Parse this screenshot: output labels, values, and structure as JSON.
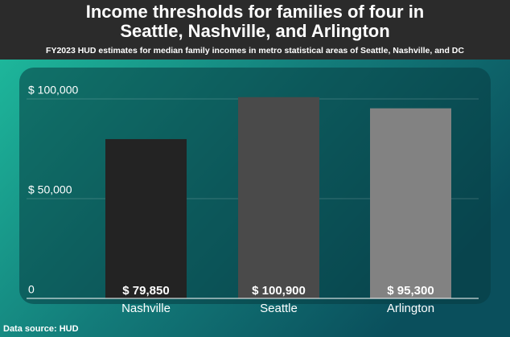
{
  "chart_data": {
    "type": "bar",
    "title": [
      "Income thresholds for families of four in",
      "Seattle, Nashville, and Arlington"
    ],
    "subtitle": "FY2023 HUD estimates for median family incomes in metro statistical areas of Seattle, Nashville, and DC",
    "categories": [
      "Nashville",
      "Seattle",
      "Arlington"
    ],
    "values": [
      79850,
      100900,
      95300
    ],
    "value_labels": [
      "$ 79,850",
      "$ 100,900",
      "$ 95,300"
    ],
    "colors": [
      "#232323",
      "#4a4a4a",
      "#828282"
    ],
    "ylim": [
      0,
      105000
    ],
    "yticks": [
      0,
      {
        "value": 50000,
        "label": "$ 50,000"
      },
      {
        "value": 100000,
        "label": "$ 100,000"
      }
    ],
    "grid": true,
    "source": "Data source: HUD"
  }
}
